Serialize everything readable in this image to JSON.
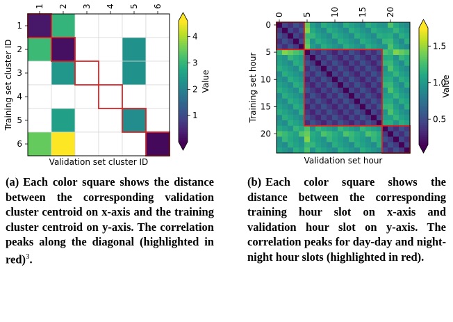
{
  "chart_data": [
    {
      "type": "heatmap",
      "xlabel": "Validation set cluster ID",
      "ylabel": "Training set cluster ID",
      "x_ticks": [
        "1",
        "2",
        "3",
        "4",
        "5",
        "6"
      ],
      "y_ticks": [
        "1",
        "2",
        "3",
        "4",
        "5",
        "6"
      ],
      "colorbar": {
        "label": "Value",
        "min": 0,
        "max": 4.6,
        "ticks": [
          1,
          2,
          3,
          4
        ],
        "extend": "both",
        "colormap": "viridis"
      },
      "cells": [
        [
          0.3,
          3.0,
          null,
          null,
          null,
          null
        ],
        [
          3.1,
          0.2,
          null,
          null,
          2.3,
          null
        ],
        [
          null,
          2.4,
          null,
          null,
          2.3,
          null
        ],
        [
          null,
          null,
          null,
          null,
          null,
          null
        ],
        [
          null,
          2.6,
          null,
          null,
          2.2,
          null
        ],
        [
          3.5,
          4.6,
          null,
          null,
          null,
          0.1
        ]
      ],
      "highlight_diagonal_blocks": [
        [
          0,
          0
        ],
        [
          1,
          1
        ],
        [
          2,
          2
        ],
        [
          3,
          3
        ],
        [
          4,
          4
        ],
        [
          5,
          5
        ]
      ],
      "highlight_color": "#dd2222"
    },
    {
      "type": "heatmap",
      "xlabel": "Validation set hour",
      "ylabel": "Training set hour",
      "x_ticks": [
        "0",
        "5",
        "10",
        "15",
        "20"
      ],
      "y_ticks": [
        "0",
        "5",
        "10",
        "15",
        "20"
      ],
      "hours": 24,
      "colorbar": {
        "label": "Value",
        "min": 0.15,
        "max": 1.75,
        "ticks": [
          0.5,
          1.0,
          1.5
        ],
        "extend": "both",
        "colormap": "viridis"
      },
      "blocks": [
        {
          "name": "night",
          "from": 0,
          "to": 5
        },
        {
          "name": "day",
          "from": 5,
          "to": 19
        },
        {
          "name": "night",
          "from": 19,
          "to": 24
        }
      ],
      "pattern_levels": {
        "same_block": 0.3,
        "cross_block": 1.15,
        "edge_columns_5_6": 1.45,
        "edge_columns_19_21": 1.3
      },
      "highlight_color": "#dd2222"
    }
  ],
  "captions": {
    "a": {
      "label": "(a)",
      "text": "Each color square shows the distance between the corresponding validation cluster centroid on x-axis and the training cluster centroid on y-axis. The correlation peaks along the diagonal (highlighted in red)",
      "footnote": "3"
    },
    "b": {
      "label": "(b)",
      "text": "Each color square shows the distance between the corresponding training hour slot on x-axis and validation hour slot on y-axis. The correlation peaks for day-day and night-night hour slots (highlighted in red)."
    }
  }
}
